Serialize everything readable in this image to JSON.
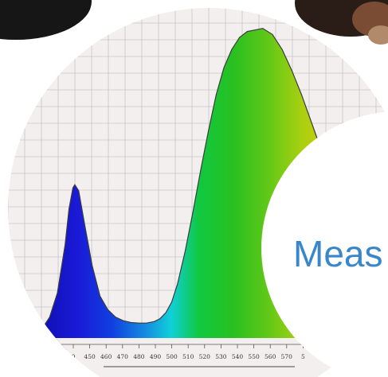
{
  "chart_data": {
    "type": "area",
    "title": "",
    "xlabel": "",
    "ylabel": "",
    "x_ticks": [
      "0",
      "450",
      "460",
      "470",
      "480",
      "490",
      "500",
      "510",
      "520",
      "530",
      "540",
      "550",
      "560",
      "570",
      "5"
    ],
    "xlim": [
      437,
      620
    ],
    "ylim": [
      0,
      1
    ],
    "grid": true,
    "series": [
      {
        "x": [
          437,
          440,
          444,
          448,
          450,
          452,
          453,
          455,
          458,
          462,
          466,
          470,
          474,
          478,
          482,
          486,
          490,
          494,
          497,
          500,
          503,
          506,
          510,
          514,
          518,
          522,
          526,
          530,
          534,
          538,
          542,
          546,
          550,
          555,
          560,
          565,
          570,
          575,
          580,
          585,
          590,
          595,
          600,
          605,
          610,
          615,
          620
        ],
        "y": [
          0.0,
          0.03,
          0.11,
          0.27,
          0.39,
          0.46,
          0.47,
          0.45,
          0.34,
          0.2,
          0.1,
          0.055,
          0.03,
          0.018,
          0.012,
          0.01,
          0.01,
          0.015,
          0.025,
          0.045,
          0.08,
          0.14,
          0.25,
          0.38,
          0.52,
          0.65,
          0.77,
          0.86,
          0.92,
          0.96,
          0.98,
          0.985,
          0.99,
          0.97,
          0.92,
          0.85,
          0.77,
          0.68,
          0.59,
          0.5,
          0.42,
          0.35,
          0.28,
          0.22,
          0.17,
          0.13,
          0.1
        ]
      }
    ]
  },
  "overlay": {
    "partial_label": "Meas"
  },
  "colors": {
    "plot_background": "#f3efef",
    "grid_line": "#b5b5b5",
    "curve_stroke": "#3c3c3c",
    "label_text": "#3a86c8",
    "photo_dark": "#161616"
  }
}
